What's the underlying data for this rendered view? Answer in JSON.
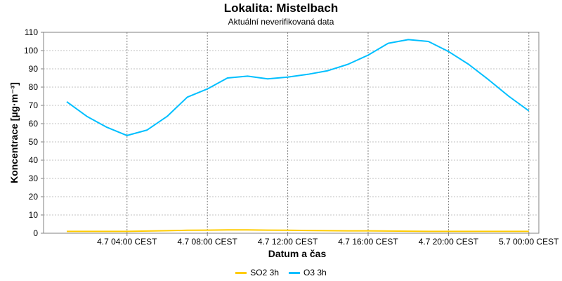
{
  "title": "Lokalita: Mistelbach",
  "subtitle": "Aktuální neverifikovaná data",
  "chart_data": {
    "type": "line",
    "xlabel": "Datum a čas",
    "ylabel": "Koncentrace [µg·m⁻³]",
    "ylim": [
      0,
      110
    ],
    "yticks": [
      0,
      10,
      20,
      30,
      40,
      50,
      60,
      70,
      80,
      90,
      100,
      110
    ],
    "xticks": [
      {
        "hour": 4,
        "label": "4.7 04:00 CEST"
      },
      {
        "hour": 8,
        "label": "4.7 08:00 CEST"
      },
      {
        "hour": 12,
        "label": "4.7 12:00 CEST"
      },
      {
        "hour": 16,
        "label": "4.7 16:00 CEST"
      },
      {
        "hour": 20,
        "label": "4.7 20:00 CEST"
      },
      {
        "hour": 24,
        "label": "5.7 00:00 CEST"
      }
    ],
    "grid": true,
    "legend_position": "bottom-center",
    "series": [
      {
        "name": "SO2 3h",
        "color": "#ffcc00",
        "x": [
          1,
          2,
          3,
          4,
          5,
          6,
          7,
          8,
          9,
          10,
          11,
          12,
          13,
          14,
          15,
          16,
          17,
          18,
          19,
          20,
          21,
          22,
          23,
          24
        ],
        "values": [
          1,
          1,
          1,
          1,
          1.2,
          1.4,
          1.6,
          1.7,
          1.8,
          1.8,
          1.7,
          1.6,
          1.5,
          1.4,
          1.3,
          1.3,
          1.2,
          1.1,
          1,
          1,
          1,
          1,
          1,
          1
        ]
      },
      {
        "name": "O3 3h",
        "color": "#00bfff",
        "x": [
          1,
          2,
          3,
          4,
          5,
          6,
          7,
          8,
          9,
          10,
          11,
          12,
          13,
          14,
          15,
          16,
          17,
          18,
          19,
          20,
          21,
          22,
          23,
          24
        ],
        "values": [
          72,
          64,
          58,
          53.5,
          56.5,
          64,
          74.5,
          79,
          85,
          86,
          84.5,
          85.5,
          87,
          89,
          92.5,
          97.5,
          104,
          106,
          105,
          99.5,
          92.5,
          84,
          75,
          67
        ]
      }
    ]
  }
}
